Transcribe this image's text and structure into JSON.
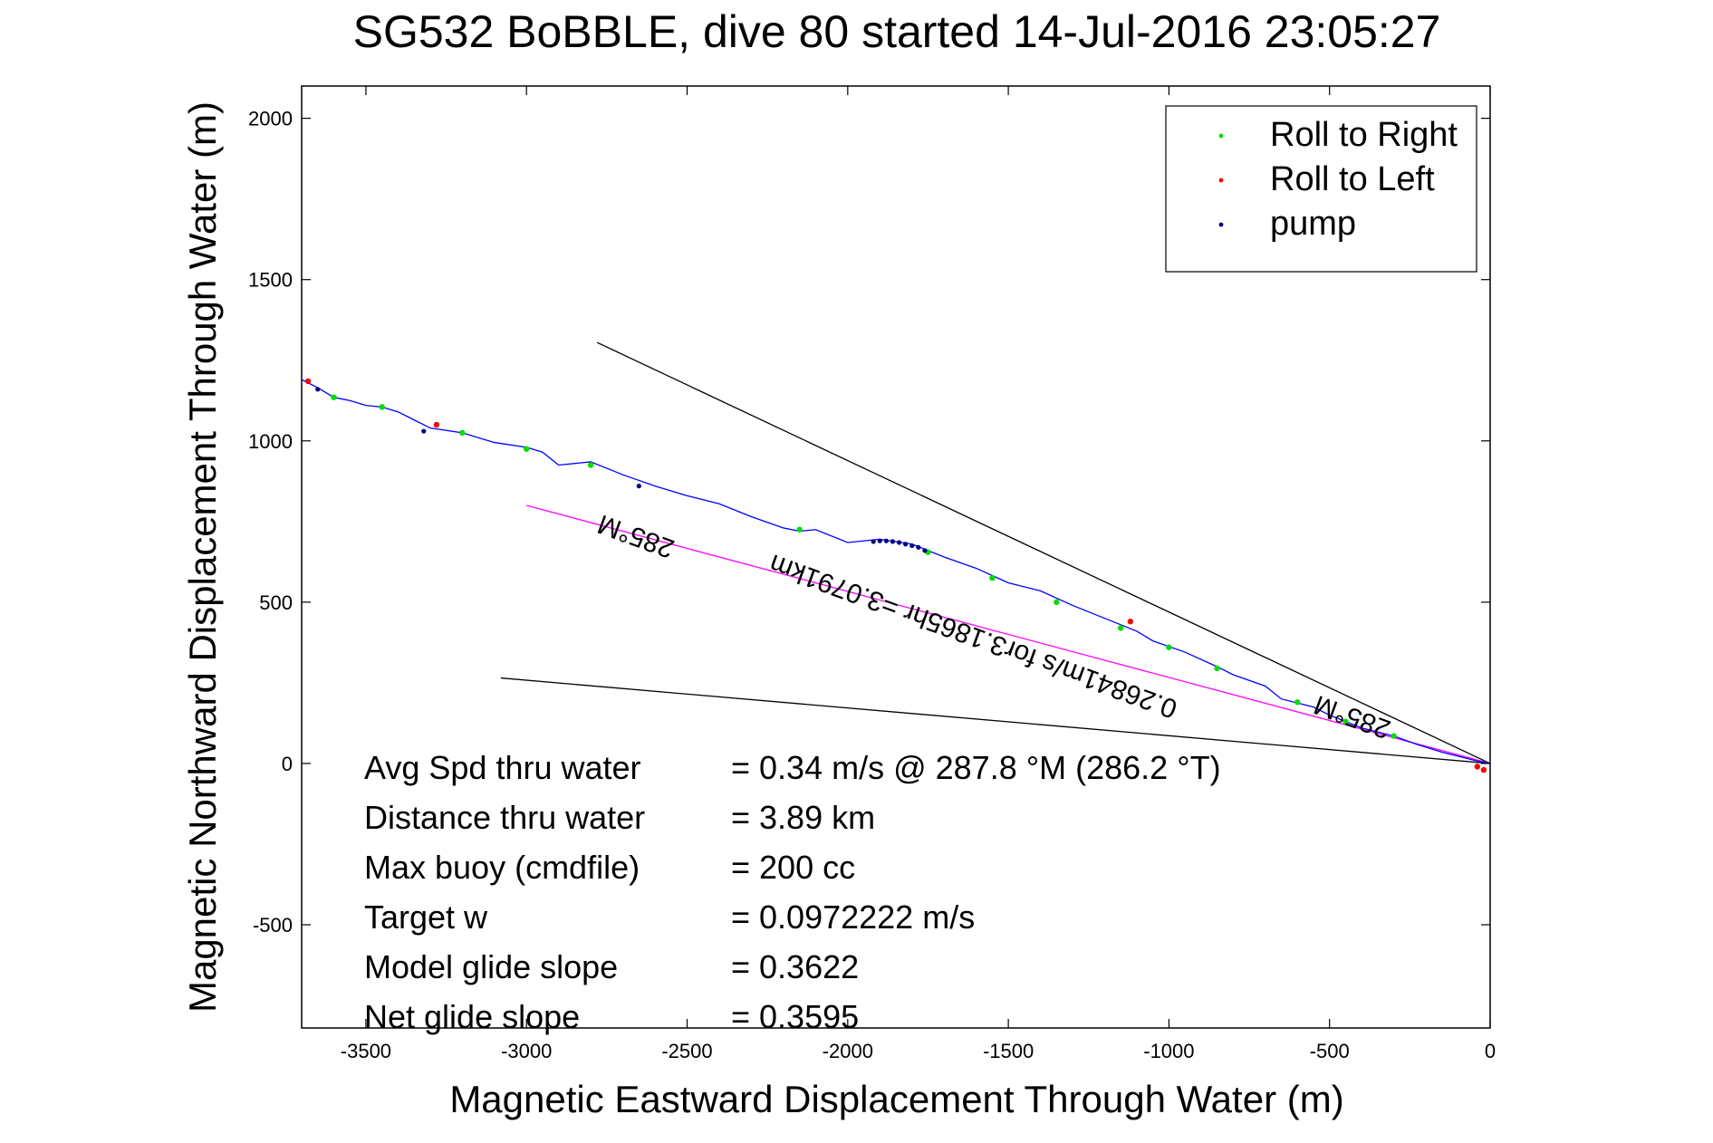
{
  "chart_data": {
    "type": "scatter",
    "title": "SG532 BoBBLE, dive 80 started 14-Jul-2016 23:05:27",
    "xlabel": "Magnetic Eastward Displacement Through Water (m)",
    "ylabel": "Magnetic Northward Displacement Through Water (m)",
    "xlim": [
      -3700,
      0
    ],
    "ylim": [
      -820,
      2100
    ],
    "xticks": [
      -3500,
      -3000,
      -2500,
      -2000,
      -1500,
      -1000,
      -500,
      0
    ],
    "yticks": [
      -500,
      0,
      500,
      1000,
      1500,
      2000
    ],
    "grid": false,
    "legend_position": "top-right",
    "legend": [
      {
        "label": "Roll to Right",
        "color": "#00dd00"
      },
      {
        "label": "Roll to Left",
        "color": "#ff0000"
      },
      {
        "label": "pump",
        "color": "#000080"
      }
    ],
    "track": {
      "name": "",
      "color": "#0000ff",
      "x": [
        0,
        -50,
        -150,
        -230,
        -300,
        -400,
        -500,
        -550,
        -650,
        -700,
        -800,
        -850,
        -950,
        -1050,
        -1100,
        -1200,
        -1300,
        -1400,
        -1500,
        -1600,
        -1700,
        -1800,
        -1900,
        -2000,
        -2100,
        -2150,
        -2200,
        -2300,
        -2400,
        -2500,
        -2600,
        -2700,
        -2800,
        -2900,
        -2950,
        -3000,
        -3100,
        -3200,
        -3300,
        -3350,
        -3400,
        -3450,
        -3500,
        -3550,
        -3600,
        -3650,
        -3700
      ],
      "y": [
        0,
        10,
        35,
        60,
        85,
        110,
        150,
        175,
        200,
        240,
        275,
        300,
        345,
        380,
        410,
        450,
        490,
        535,
        560,
        605,
        640,
        680,
        695,
        685,
        725,
        720,
        730,
        765,
        805,
        830,
        860,
        895,
        935,
        925,
        965,
        980,
        995,
        1025,
        1040,
        1065,
        1090,
        1105,
        1110,
        1125,
        1135,
        1165,
        1190
      ]
    },
    "roll_right_points": {
      "x": [
        -300,
        -450,
        -600,
        -850,
        -1000,
        -1150,
        -1350,
        -1550,
        -1750,
        -2150,
        -2800,
        -3000,
        -3200,
        -3450,
        -3600
      ],
      "y": [
        85,
        130,
        190,
        295,
        360,
        420,
        500,
        575,
        655,
        725,
        925,
        975,
        1025,
        1105,
        1135
      ]
    },
    "roll_left_points": {
      "x": [
        -40,
        -20,
        -1120,
        -3280,
        -3680
      ],
      "y": [
        -10,
        -20,
        440,
        1050,
        1185
      ]
    },
    "pump_points": {
      "x": [
        -1920,
        -1900,
        -1880,
        -1860,
        -1840,
        -1820,
        -1800,
        -1780,
        -1760,
        -2650,
        -3320,
        -3650
      ],
      "y": [
        688,
        690,
        690,
        688,
        685,
        680,
        675,
        670,
        660,
        860,
        1030,
        1160
      ]
    },
    "reference_lines": [
      {
        "name": "bound-upper",
        "color": "#000000",
        "x": [
          0,
          -2780
        ],
        "y": [
          0,
          1305
        ]
      },
      {
        "name": "bound-lower",
        "color": "#000000",
        "x": [
          0,
          -3080
        ],
        "y": [
          0,
          265
        ]
      },
      {
        "name": "heading-line",
        "color": "#ff00ff",
        "x": [
          0,
          -3000
        ],
        "y": [
          0,
          800
        ]
      }
    ],
    "annotations": [
      {
        "text": "285°M",
        "x": -2650,
        "y": 730,
        "rotation": 200
      },
      {
        "text": "0.26841m/s for3.1865hr =3.0791km",
        "x": -1600,
        "y": 420,
        "rotation": 200
      },
      {
        "text": "285°M",
        "x": -420,
        "y": 170,
        "rotation": 200
      }
    ],
    "stats": [
      {
        "label": "Avg Spd thru water",
        "value": "=  0.34 m/s @ 287.8 °M (286.2 °T)"
      },
      {
        "label": "Distance thru water",
        "value": "=  3.89 km"
      },
      {
        "label": "Max buoy (cmdfile)",
        "value": "= 200 cc"
      },
      {
        "label": "Target w",
        "value": "= 0.0972222 m/s"
      },
      {
        "label": "Model glide slope",
        "value": "= 0.3622"
      },
      {
        "label": "Net glide slope",
        "value": "= 0.3595"
      }
    ]
  }
}
